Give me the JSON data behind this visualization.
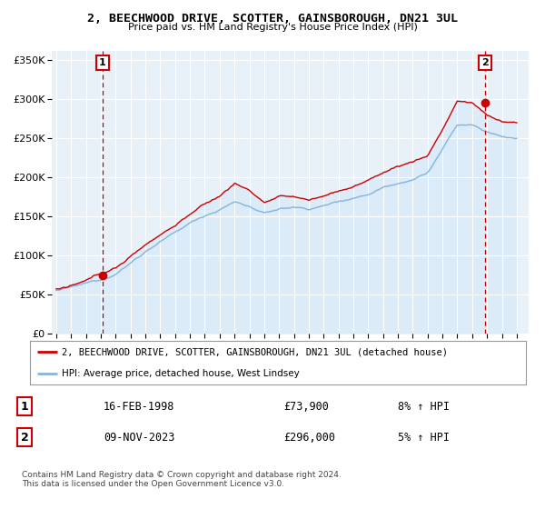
{
  "title_line1": "2, BEECHWOOD DRIVE, SCOTTER, GAINSBOROUGH, DN21 3UL",
  "title_line2": "Price paid vs. HM Land Registry's House Price Index (HPI)",
  "ylabel_ticks": [
    "£0",
    "£50K",
    "£100K",
    "£150K",
    "£200K",
    "£250K",
    "£300K",
    "£350K"
  ],
  "ylabel_values": [
    0,
    50000,
    100000,
    150000,
    200000,
    250000,
    300000,
    350000
  ],
  "ylim": [
    0,
    362000
  ],
  "xlim_start": 1994.7,
  "xlim_end": 2026.8,
  "x_ticks": [
    1995,
    1996,
    1997,
    1998,
    1999,
    2000,
    2001,
    2002,
    2003,
    2004,
    2005,
    2006,
    2007,
    2008,
    2009,
    2010,
    2011,
    2012,
    2013,
    2014,
    2015,
    2016,
    2017,
    2018,
    2019,
    2020,
    2021,
    2022,
    2023,
    2024,
    2025,
    2026
  ],
  "sale1_x": 1998.12,
  "sale1_y": 73900,
  "sale2_x": 2023.86,
  "sale2_y": 296000,
  "hpi_color": "#8ab4d8",
  "price_color": "#cc0000",
  "fill_color": "#d0e8f8",
  "legend_price_label": "2, BEECHWOOD DRIVE, SCOTTER, GAINSBOROUGH, DN21 3UL (detached house)",
  "legend_hpi_label": "HPI: Average price, detached house, West Lindsey",
  "annotation1_label": "1",
  "annotation1_date": "16-FEB-1998",
  "annotation1_price": "£73,900",
  "annotation1_hpi": "8% ↑ HPI",
  "annotation2_label": "2",
  "annotation2_date": "09-NOV-2023",
  "annotation2_price": "£296,000",
  "annotation2_hpi": "5% ↑ HPI",
  "footer": "Contains HM Land Registry data © Crown copyright and database right 2024.\nThis data is licensed under the Open Government Licence v3.0.",
  "background_color": "#ffffff",
  "plot_bg_color": "#e8f0f8",
  "grid_color": "#ffffff"
}
